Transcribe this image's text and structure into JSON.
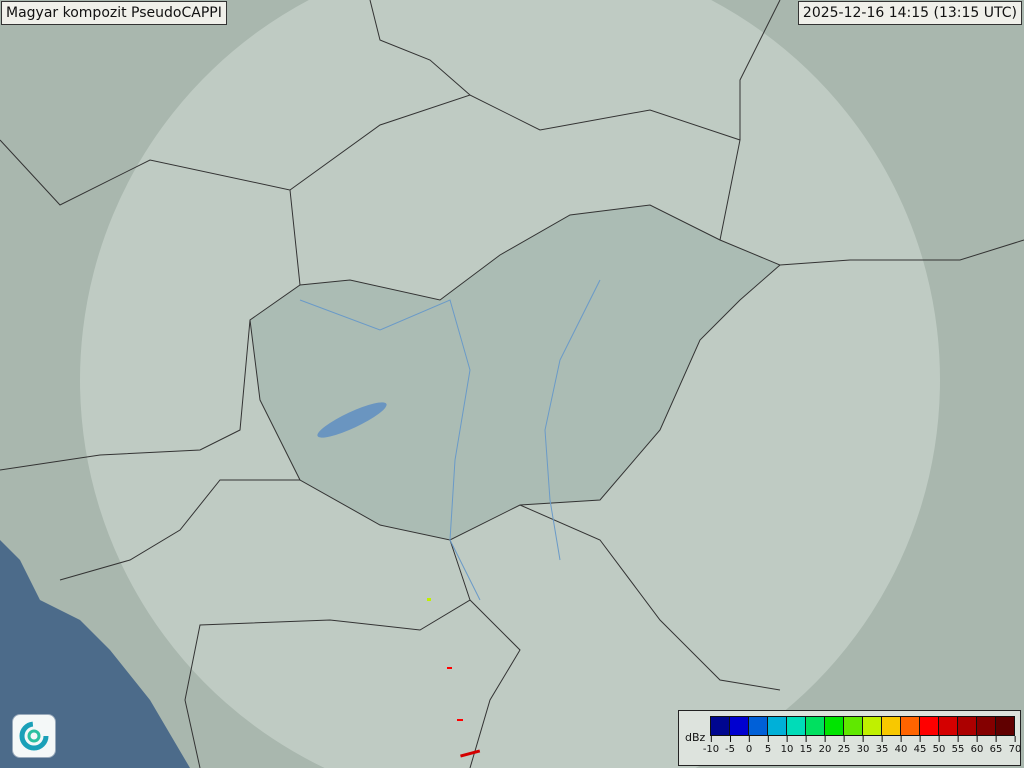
{
  "header": {
    "title": "Magyar kompozit  PseudoCAPPI",
    "timestamp": "2025-12-16 14:15 (13:15 UTC)"
  },
  "legend": {
    "unit": "dBz",
    "ticks": [
      "-10",
      "-5",
      "0",
      "5",
      "10",
      "15",
      "20",
      "25",
      "30",
      "35",
      "40",
      "45",
      "50",
      "55",
      "60",
      "65",
      "70"
    ],
    "colors": [
      "#00068f",
      "#0000d0",
      "#0060d8",
      "#00b0d8",
      "#00dcb8",
      "#00e060",
      "#00e400",
      "#60e800",
      "#c0f000",
      "#f8c800",
      "#ff6400",
      "#ff0000",
      "#d40000",
      "#ac0000",
      "#840000",
      "#600000"
    ]
  },
  "map": {
    "land_color": "#a9b8b0",
    "radar_coverage_color": "#c9d6cf",
    "sea_color": "#4a6a8a",
    "border_color": "#333333",
    "river_color": "#6a9ac8"
  },
  "logo": {
    "icon": "met-service-swirl-icon"
  }
}
